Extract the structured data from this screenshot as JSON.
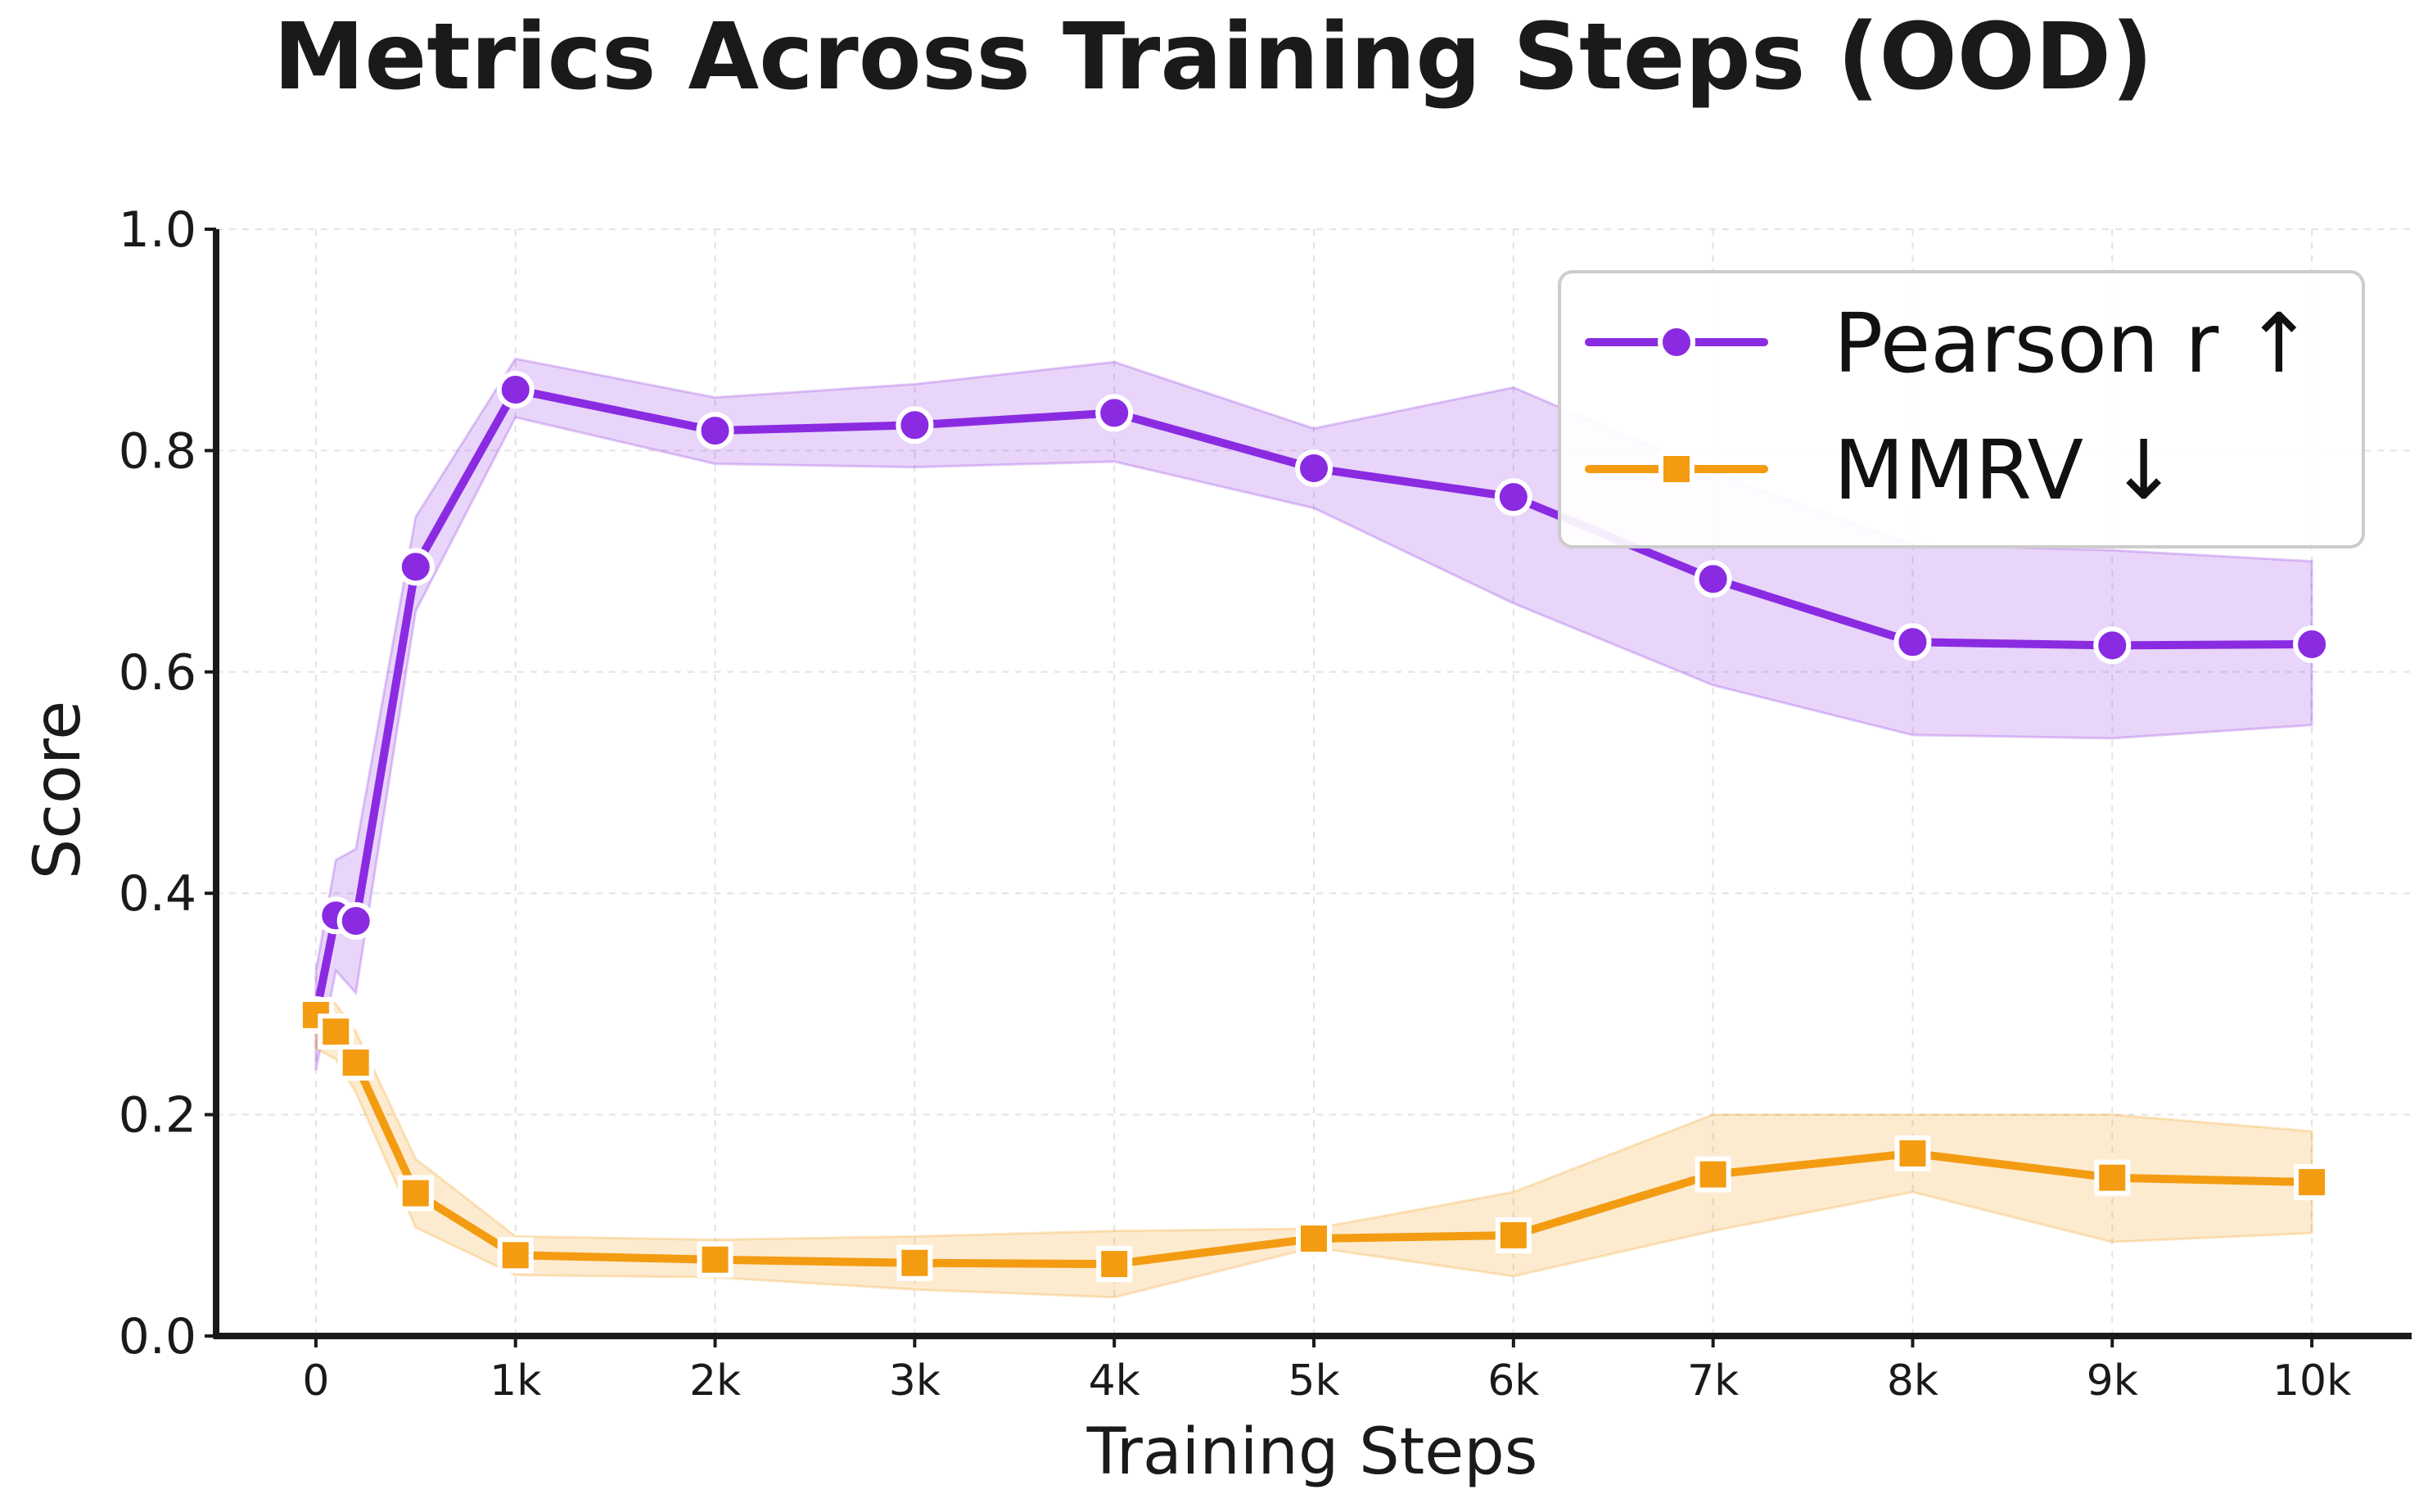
{
  "chart_data": {
    "type": "line",
    "title": "Metrics Across Training Steps (OOD)",
    "xlabel": "Training Steps",
    "ylabel": "Score",
    "ylim": [
      0,
      1
    ],
    "xlim": [
      -500,
      10500
    ],
    "grid": true,
    "legend_position": "top-right",
    "yticks": [
      0.0,
      0.2,
      0.4,
      0.6,
      0.8,
      1.0
    ],
    "ytick_labels": [
      "0.0",
      "0.2",
      "0.4",
      "0.6",
      "0.8",
      "1.0"
    ],
    "xticks": [
      0,
      1000,
      2000,
      3000,
      4000,
      5000,
      6000,
      7000,
      8000,
      9000,
      10000
    ],
    "xtick_labels": [
      "0",
      "1k",
      "2k",
      "3k",
      "4k",
      "5k",
      "6k",
      "7k",
      "8k",
      "9k",
      "10k"
    ],
    "x": [
      0,
      100,
      200,
      500,
      1000,
      2000,
      3000,
      4000,
      5000,
      6000,
      7000,
      8000,
      9000,
      10000
    ],
    "series": [
      {
        "name": "Pearson r ↑",
        "color": "#8a2be2",
        "marker": "circle",
        "values": [
          0.29,
          0.38,
          0.375,
          0.695,
          0.855,
          0.818,
          0.823,
          0.834,
          0.784,
          0.758,
          0.684,
          0.627,
          0.624,
          0.625
        ],
        "lower": [
          0.24,
          0.33,
          0.31,
          0.655,
          0.83,
          0.788,
          0.785,
          0.79,
          0.748,
          0.662,
          0.588,
          0.543,
          0.54,
          0.552
        ],
        "upper": [
          0.33,
          0.43,
          0.44,
          0.74,
          0.883,
          0.848,
          0.86,
          0.88,
          0.82,
          0.857,
          0.78,
          0.715,
          0.71,
          0.7
        ]
      },
      {
        "name": "MMRV ↓",
        "color": "#f39c12",
        "marker": "square",
        "values": [
          0.29,
          0.275,
          0.247,
          0.129,
          0.073,
          0.069,
          0.066,
          0.065,
          0.088,
          0.091,
          0.146,
          0.165,
          0.143,
          0.139
        ],
        "lower": [
          0.26,
          0.25,
          0.22,
          0.098,
          0.055,
          0.053,
          0.042,
          0.035,
          0.08,
          0.054,
          0.095,
          0.13,
          0.085,
          0.093
        ],
        "upper": [
          0.31,
          0.3,
          0.275,
          0.16,
          0.09,
          0.087,
          0.09,
          0.095,
          0.097,
          0.13,
          0.2,
          0.2,
          0.2,
          0.185
        ]
      }
    ]
  }
}
